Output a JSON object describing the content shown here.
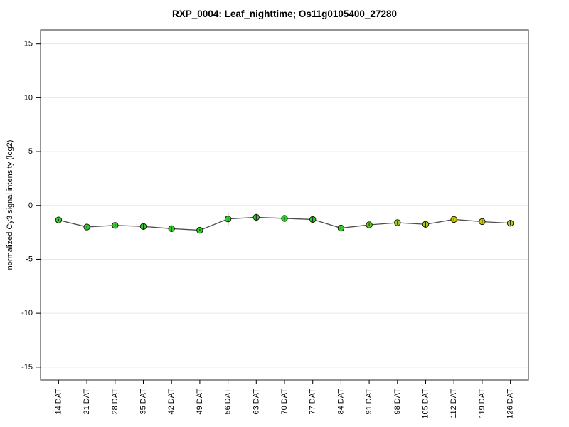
{
  "title": "RXP_0004: Leaf_nighttime; Os11g0105400_27280",
  "chart_data": {
    "type": "line",
    "title": "RXP_0004: Leaf_nighttime; Os11g0105400_27280",
    "xlabel": "",
    "ylabel": "normalized Cy3 signal intensity (log2)",
    "categories": [
      "14 DAT",
      "21 DAT",
      "28 DAT",
      "35 DAT",
      "42 DAT",
      "49 DAT",
      "56 DAT",
      "63 DAT",
      "70 DAT",
      "77 DAT",
      "84 DAT",
      "91 DAT",
      "98 DAT",
      "105 DAT",
      "112 DAT",
      "119 DAT",
      "126 DAT"
    ],
    "series": [
      {
        "name": "normalized Cy3 signal intensity",
        "values": [
          -1.35,
          -2.0,
          -1.85,
          -1.95,
          -2.15,
          -2.3,
          -1.25,
          -1.1,
          -1.2,
          -1.3,
          -2.1,
          -1.8,
          -1.6,
          -1.75,
          -1.3,
          -1.5,
          -1.65
        ],
        "errors": [
          0.08,
          0.06,
          0.1,
          0.3,
          0.18,
          0.1,
          0.6,
          0.38,
          0.12,
          0.25,
          0.12,
          0.12,
          0.18,
          0.28,
          0.15,
          0.2,
          0.18
        ],
        "point_colors": [
          "#33cc33",
          "#33cc33",
          "#33cc33",
          "#33cc33",
          "#33cc33",
          "#33cc33",
          "#33cc33",
          "#33cc33",
          "#33cc33",
          "#33cc33",
          "#33cc33",
          "#66cc22",
          "#99cc22",
          "#b3cc11",
          "#cccc00",
          "#cccc00",
          "#cccc00"
        ]
      }
    ],
    "yticks": [
      -15,
      -10,
      -5,
      0,
      5,
      10,
      15
    ],
    "ylim": [
      -16.2,
      16.3
    ],
    "xlim": [
      0.36,
      17.64
    ],
    "grid": true,
    "legend": "none",
    "colors": {
      "gridline": "#e7e7e7",
      "plot_border": "#4d4d4d",
      "axis_tick": "#000000",
      "series_line": "#4d4d4d",
      "marker_stroke": "#1a1a00",
      "error_bar": "#222222",
      "background": "#ffffff"
    }
  }
}
